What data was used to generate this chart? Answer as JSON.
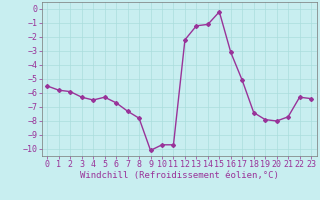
{
  "x": [
    0,
    1,
    2,
    3,
    4,
    5,
    6,
    7,
    8,
    9,
    10,
    11,
    12,
    13,
    14,
    15,
    16,
    17,
    18,
    19,
    20,
    21,
    22,
    23
  ],
  "y": [
    -5.5,
    -5.8,
    -5.9,
    -6.3,
    -6.5,
    -6.3,
    -6.7,
    -7.3,
    -7.8,
    -10.1,
    -9.7,
    -9.7,
    -2.2,
    -1.2,
    -1.1,
    -0.2,
    -3.1,
    -5.1,
    -7.4,
    -7.9,
    -8.0,
    -7.7,
    -6.3,
    -6.4
  ],
  "line_color": "#993399",
  "marker": "D",
  "markersize": 2.0,
  "linewidth": 1.0,
  "bg_color": "#c8eef0",
  "grid_color": "#aadddd",
  "xlabel": "Windchill (Refroidissement éolien,°C)",
  "xlabel_fontsize": 6.5,
  "xlabel_color": "#993399",
  "tick_color": "#993399",
  "tick_fontsize": 6.0,
  "ylim": [
    -10.5,
    0.5
  ],
  "xlim": [
    -0.5,
    23.5
  ],
  "yticks": [
    0,
    -1,
    -2,
    -3,
    -4,
    -5,
    -6,
    -7,
    -8,
    -9,
    -10
  ],
  "xticks": [
    0,
    1,
    2,
    3,
    4,
    5,
    6,
    7,
    8,
    9,
    10,
    11,
    12,
    13,
    14,
    15,
    16,
    17,
    18,
    19,
    20,
    21,
    22,
    23
  ]
}
